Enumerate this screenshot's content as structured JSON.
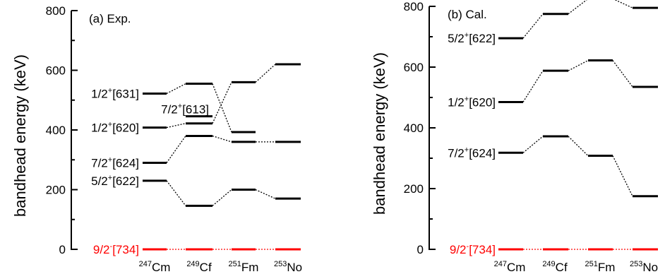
{
  "chart_data": [
    {
      "type": "level-scheme",
      "panel_label": "(a) Exp.",
      "ylabel": "bandhead energy (keV)",
      "yticks": [
        0,
        200,
        400,
        600,
        800
      ],
      "ylim": [
        0,
        800
      ],
      "nuclei": [
        {
          "sup": "247",
          "sym": "Cm"
        },
        {
          "sup": "249",
          "sym": "Cf"
        },
        {
          "sup": "251",
          "sym": "Fm"
        },
        {
          "sup": "253",
          "sym": "No"
        }
      ],
      "bands": [
        {
          "label_pre": "9/2",
          "label_sup": "-",
          "label_post": "[734]",
          "color": "#ff0000",
          "values": [
            0,
            0,
            0,
            0
          ]
        },
        {
          "label_pre": "5/2",
          "label_sup": "+",
          "label_post": "[622]",
          "color": "#000000",
          "values": [
            230,
            146,
            200,
            170
          ]
        },
        {
          "label_pre": "7/2",
          "label_sup": "+",
          "label_post": "[624]",
          "color": "#000000",
          "values": [
            290,
            380,
            360,
            360
          ]
        },
        {
          "label_pre": "1/2",
          "label_sup": "+",
          "label_post": "[620]",
          "color": "#000000",
          "values": [
            408,
            422,
            560,
            620
          ]
        },
        {
          "label_pre": "1/2",
          "label_sup": "+",
          "label_post": "[631]",
          "color": "#000000",
          "values": [
            522,
            555,
            393,
            null
          ]
        },
        {
          "label_pre": "7/2",
          "label_sup": "+",
          "label_post": "[613]",
          "color": "#000000",
          "values": [
            null,
            446,
            null,
            null
          ]
        }
      ]
    },
    {
      "type": "level-scheme",
      "panel_label": "(b) Cal.",
      "ylabel": "bandhead energy (keV)",
      "yticks": [
        0,
        200,
        400,
        600,
        800
      ],
      "ylim": [
        0,
        800
      ],
      "nuclei": [
        {
          "sup": "247",
          "sym": "Cm"
        },
        {
          "sup": "249",
          "sym": "Cf"
        },
        {
          "sup": "251",
          "sym": "Fm"
        },
        {
          "sup": "253",
          "sym": "No"
        }
      ],
      "bands": [
        {
          "label_pre": "9/2",
          "label_sup": "-",
          "label_post": "[734]",
          "color": "#ff0000",
          "values": [
            0,
            0,
            0,
            0
          ]
        },
        {
          "label_pre": "7/2",
          "label_sup": "+",
          "label_post": "[624]",
          "color": "#000000",
          "values": [
            318,
            372,
            308,
            175
          ]
        },
        {
          "label_pre": "1/2",
          "label_sup": "+",
          "label_post": "[620]",
          "color": "#000000",
          "values": [
            485,
            588,
            622,
            535
          ]
        },
        {
          "label_pre": "5/2",
          "label_sup": "+",
          "label_post": "[622]",
          "color": "#000000",
          "values": [
            695,
            775,
            825,
            795
          ]
        }
      ]
    }
  ]
}
